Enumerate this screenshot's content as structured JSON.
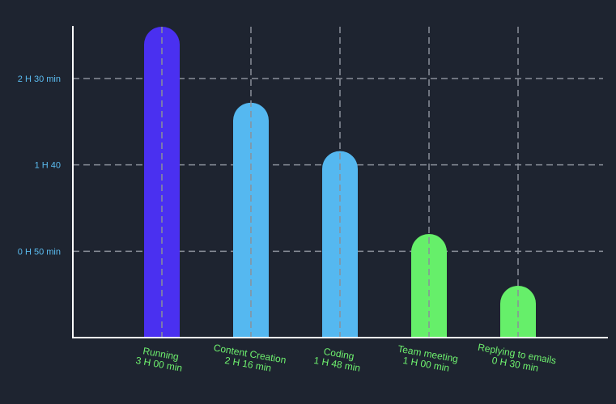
{
  "chart_data": {
    "type": "bar",
    "title": "",
    "xlabel": "",
    "ylabel": "",
    "unit": "minutes",
    "categories": [
      "Running",
      "Content Creation",
      "Coding",
      "Team meeting",
      "Replying to emails"
    ],
    "value_labels": [
      "3 H 00 min",
      "2 H 16 min",
      "1 H 48 min",
      "1 H 00 min",
      "0 H 30 min"
    ],
    "values": [
      180,
      136,
      108,
      60,
      30
    ],
    "ylim": [
      0,
      180
    ],
    "yticks": [
      {
        "value": 50,
        "label": "0 H 50 min"
      },
      {
        "value": 100,
        "label": "1 H 40"
      },
      {
        "value": 150,
        "label": "2 H 30 min"
      }
    ],
    "grid": true,
    "legend": "none",
    "colors": {
      "background": "#1e2430",
      "axis": "#ffffff",
      "grid": "#8a8f99",
      "ytick_text": "#5bbcf0",
      "xtick_text": "#6ef06e",
      "bars": [
        "#4a30f0",
        "#55b8f0",
        "#55b8f0",
        "#66ef6a",
        "#66ef6a"
      ]
    }
  }
}
